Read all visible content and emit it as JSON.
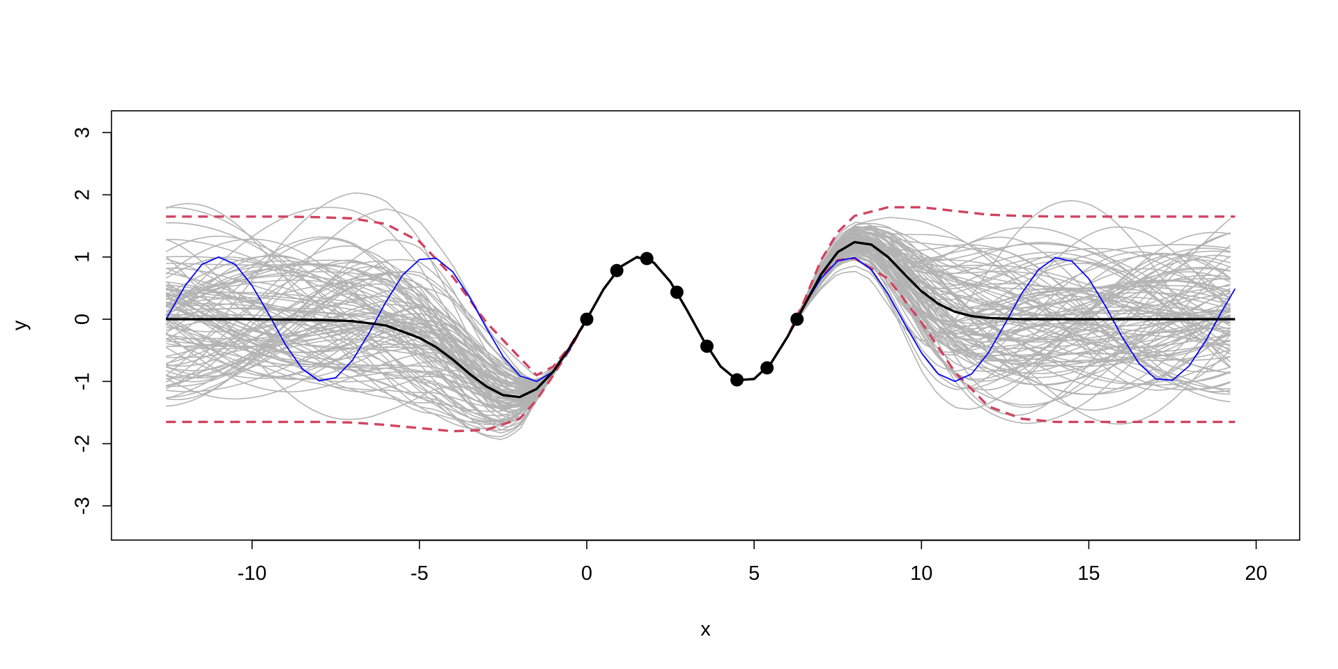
{
  "chart_data": {
    "type": "line",
    "title": "",
    "xlabel": "x",
    "ylabel": "y",
    "xlim": [
      -14.2,
      21.3
    ],
    "ylim": [
      -3.55,
      3.35
    ],
    "x_ticks": [
      -10,
      -5,
      0,
      5,
      10,
      15,
      20
    ],
    "y_ticks": [
      -3,
      -2,
      -1,
      0,
      1,
      2,
      3
    ],
    "x_tick_labels": [
      "-10",
      "-5",
      "0",
      "5",
      "10",
      "15",
      "20"
    ],
    "y_tick_labels": [
      "-3",
      "-2",
      "-1",
      "0",
      "1",
      "2",
      "3"
    ],
    "grid": false,
    "legend": "none",
    "x_range": [
      -12.57,
      19.37
    ],
    "observations": {
      "x": [
        0.0,
        0.898,
        1.795,
        2.693,
        3.59,
        4.488,
        5.386,
        6.283
      ],
      "y": [
        0.0,
        0.782,
        0.975,
        0.434,
        -0.434,
        -0.975,
        -0.782,
        0.0
      ],
      "color": "#000000"
    },
    "series": [
      {
        "role": "true-function",
        "color": "#0000FF",
        "x": [
          -12.57,
          -12.0,
          -11.5,
          -11.0,
          -10.5,
          -10.0,
          -9.5,
          -9.0,
          -8.5,
          -8.0,
          -7.5,
          -7.0,
          -6.5,
          -6.0,
          -5.5,
          -5.0,
          -4.5,
          -4.0,
          -3.5,
          -3.0,
          -2.5,
          -2.0,
          -1.5,
          -1.0,
          -0.5,
          0.0,
          0.5,
          1.0,
          1.5,
          2.0,
          2.5,
          3.0,
          3.5,
          4.0,
          4.5,
          5.0,
          5.5,
          6.0,
          6.5,
          7.0,
          7.5,
          8.0,
          8.5,
          9.0,
          9.5,
          10.0,
          10.5,
          11.0,
          11.5,
          12.0,
          12.5,
          13.0,
          13.5,
          14.0,
          14.5,
          15.0,
          15.5,
          16.0,
          16.5,
          17.0,
          17.5,
          18.0,
          18.5,
          19.0,
          19.37
        ],
        "y": [
          0.0,
          0.54,
          0.88,
          1.0,
          0.88,
          0.54,
          0.08,
          -0.41,
          -0.8,
          -0.99,
          -0.94,
          -0.66,
          -0.22,
          0.28,
          0.71,
          0.96,
          0.98,
          0.76,
          0.35,
          -0.14,
          -0.6,
          -0.91,
          -1.0,
          -0.84,
          -0.48,
          0.0,
          0.48,
          0.84,
          1.0,
          0.91,
          0.6,
          0.14,
          -0.35,
          -0.76,
          -0.98,
          -0.96,
          -0.71,
          -0.28,
          0.22,
          0.66,
          0.94,
          0.99,
          0.8,
          0.41,
          -0.08,
          -0.54,
          -0.88,
          -1.0,
          -0.88,
          -0.54,
          -0.07,
          0.42,
          0.8,
          0.99,
          0.93,
          0.65,
          0.21,
          -0.29,
          -0.71,
          -0.96,
          -0.98,
          -0.75,
          -0.34,
          0.15,
          0.49
        ]
      },
      {
        "role": "posterior-mean",
        "color": "#000000",
        "x": [
          -12.57,
          -10.0,
          -8.0,
          -7.0,
          -6.0,
          -5.0,
          -4.5,
          -4.0,
          -3.5,
          -3.0,
          -2.5,
          -2.0,
          -1.5,
          -1.0,
          -0.5,
          0.0,
          0.5,
          1.0,
          1.5,
          2.0,
          2.5,
          3.0,
          3.5,
          4.0,
          4.5,
          5.0,
          5.5,
          6.0,
          6.5,
          7.0,
          7.5,
          8.0,
          8.5,
          9.0,
          9.5,
          10.0,
          10.5,
          11.0,
          11.5,
          12.0,
          13.0,
          14.0,
          16.0,
          19.37
        ],
        "y": [
          0.0,
          0.0,
          -0.01,
          -0.03,
          -0.1,
          -0.3,
          -0.45,
          -0.65,
          -0.88,
          -1.08,
          -1.22,
          -1.25,
          -1.12,
          -0.84,
          -0.45,
          0.0,
          0.48,
          0.84,
          1.0,
          0.91,
          0.6,
          0.14,
          -0.35,
          -0.76,
          -0.98,
          -0.96,
          -0.71,
          -0.28,
          0.22,
          0.72,
          1.08,
          1.24,
          1.2,
          1.0,
          0.72,
          0.45,
          0.25,
          0.12,
          0.05,
          0.02,
          0.0,
          0.0,
          0.0,
          0.0
        ]
      },
      {
        "role": "upper-band",
        "color": "#D2435F",
        "x": [
          -12.57,
          -9.0,
          -8.0,
          -7.0,
          -6.0,
          -5.0,
          -4.0,
          -3.0,
          -2.0,
          -1.5,
          -1.0,
          -0.5,
          0.0,
          0.5,
          1.0,
          1.5,
          2.0,
          2.5,
          3.0,
          3.5,
          4.0,
          4.5,
          5.0,
          5.5,
          6.0,
          6.5,
          7.0,
          7.5,
          8.0,
          9.0,
          10.0,
          11.0,
          12.0,
          13.0,
          14.0,
          16.0,
          19.37
        ],
        "y": [
          1.65,
          1.65,
          1.64,
          1.62,
          1.53,
          1.25,
          0.68,
          -0.05,
          -0.62,
          -0.9,
          -0.76,
          -0.43,
          0.0,
          0.48,
          0.84,
          1.0,
          0.91,
          0.6,
          0.14,
          -0.35,
          -0.76,
          -0.98,
          -0.96,
          -0.71,
          -0.28,
          0.3,
          0.95,
          1.4,
          1.66,
          1.8,
          1.8,
          1.74,
          1.68,
          1.66,
          1.65,
          1.65,
          1.65
        ]
      },
      {
        "role": "lower-band",
        "color": "#D2435F",
        "x": [
          -12.57,
          -9.0,
          -8.0,
          -7.0,
          -6.0,
          -5.0,
          -4.0,
          -3.0,
          -2.0,
          -1.5,
          -1.0,
          -0.5,
          0.0,
          0.5,
          1.0,
          1.5,
          2.0,
          2.5,
          3.0,
          3.5,
          4.0,
          4.5,
          5.0,
          5.5,
          6.0,
          6.5,
          7.0,
          7.5,
          8.0,
          9.0,
          10.0,
          11.0,
          12.0,
          13.0,
          14.0,
          16.0,
          19.37
        ],
        "y": [
          -1.65,
          -1.65,
          -1.65,
          -1.66,
          -1.7,
          -1.75,
          -1.8,
          -1.78,
          -1.6,
          -1.3,
          -0.9,
          -0.48,
          0.0,
          0.48,
          0.84,
          1.0,
          0.91,
          0.6,
          0.14,
          -0.35,
          -0.76,
          -0.98,
          -0.96,
          -0.71,
          -0.28,
          0.25,
          0.68,
          0.95,
          0.98,
          0.65,
          -0.05,
          -0.85,
          -1.4,
          -1.6,
          -1.65,
          -1.65,
          -1.65
        ]
      }
    ],
    "samples": {
      "count": 100,
      "color": "#B3B3B3",
      "description_hidden": true
    }
  }
}
